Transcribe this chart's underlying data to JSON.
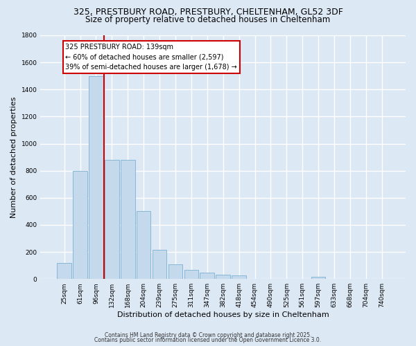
{
  "title_line1": "325, PRESTBURY ROAD, PRESTBURY, CHELTENHAM, GL52 3DF",
  "title_line2": "Size of property relative to detached houses in Cheltenham",
  "xlabel": "Distribution of detached houses by size in Cheltenham",
  "ylabel": "Number of detached properties",
  "categories": [
    "25sqm",
    "61sqm",
    "96sqm",
    "132sqm",
    "168sqm",
    "204sqm",
    "239sqm",
    "275sqm",
    "311sqm",
    "347sqm",
    "382sqm",
    "418sqm",
    "454sqm",
    "490sqm",
    "525sqm",
    "561sqm",
    "597sqm",
    "633sqm",
    "668sqm",
    "704sqm",
    "740sqm"
  ],
  "values": [
    120,
    800,
    1500,
    880,
    880,
    500,
    215,
    110,
    65,
    45,
    30,
    25,
    0,
    0,
    0,
    0,
    15,
    0,
    0,
    0,
    0
  ],
  "bar_color": "#c5d9ed",
  "bar_edgecolor": "#7aafd4",
  "redline_index": 2.5,
  "annotation_title": "325 PRESTBURY ROAD: 139sqm",
  "annotation_line2": "← 60% of detached houses are smaller (2,597)",
  "annotation_line3": "39% of semi-detached houses are larger (1,678) →",
  "annotation_box_facecolor": "#ffffff",
  "annotation_border_color": "#cc0000",
  "ylim": [
    0,
    1800
  ],
  "yticks": [
    0,
    200,
    400,
    600,
    800,
    1000,
    1200,
    1400,
    1600,
    1800
  ],
  "background_color": "#dde8f5",
  "grid_color": "#ffffff",
  "footer_line1": "Contains HM Land Registry data © Crown copyright and database right 2025.",
  "footer_line2": "Contains public sector information licensed under the Open Government Licence 3.0."
}
